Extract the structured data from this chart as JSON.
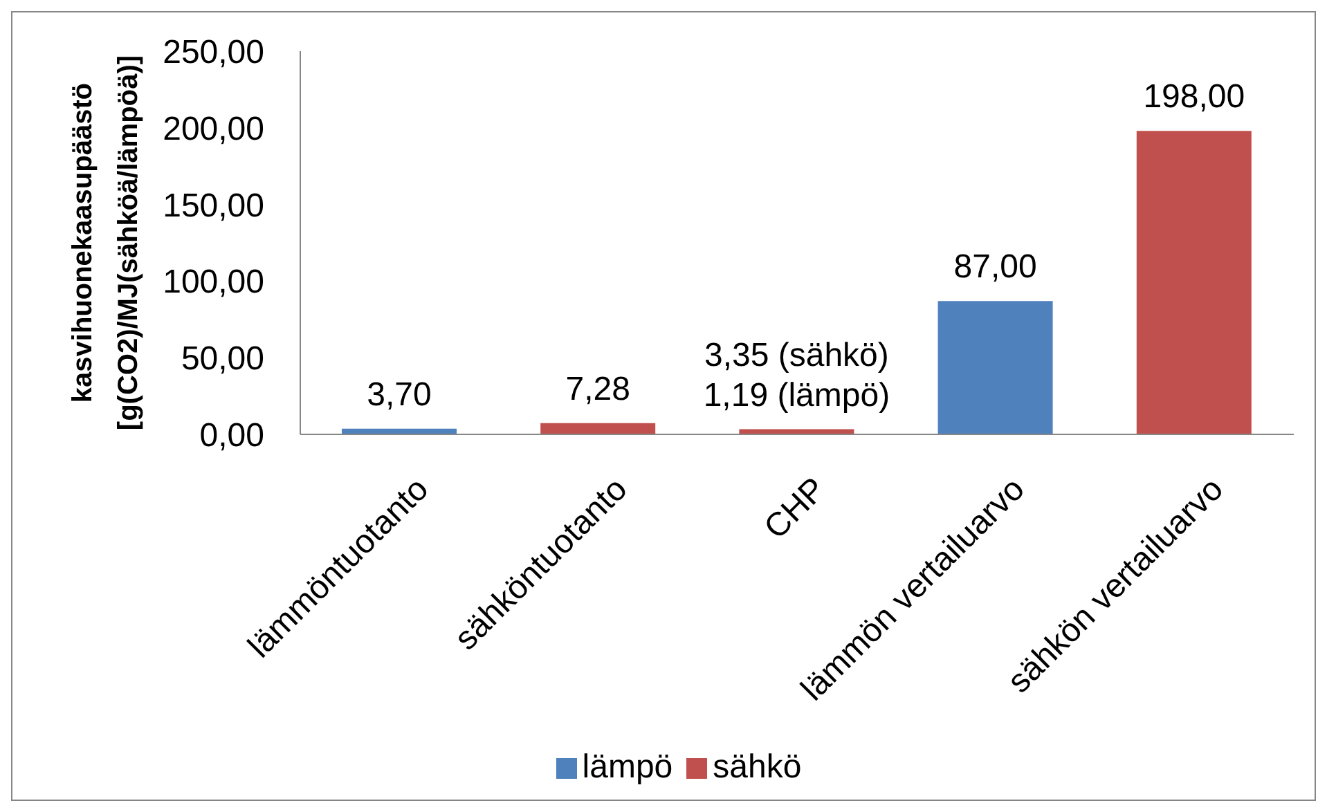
{
  "chart_data": {
    "type": "bar",
    "ylabel": "kasvihuonekaasupäästö\n[g(CO2)/MJ(sähköä/lämpöä)]",
    "categories": [
      "lämmöntuotanto",
      "sähköntuotanto",
      "CHP",
      "lämmön vertailuarvo",
      "sähkön vertailuarvo"
    ],
    "series": [
      {
        "name": "lämpö",
        "color": "#4f81bd",
        "values": [
          3.7,
          null,
          null,
          87,
          null
        ],
        "value_labels": [
          "3,70",
          null,
          null,
          "87,00",
          null
        ]
      },
      {
        "name": "sähkö",
        "color": "#c0504d",
        "values": [
          null,
          7.28,
          3.35,
          null,
          198
        ],
        "value_labels": [
          null,
          "7,28",
          "3,35 (sähkö)\n1,19 (lämpö)",
          null,
          "198,00"
        ]
      }
    ],
    "ylim": [
      0,
      250
    ],
    "yticks": [
      {
        "value": 0,
        "label": "0,00"
      },
      {
        "value": 50,
        "label": "50,00"
      },
      {
        "value": 100,
        "label": "100,00"
      },
      {
        "value": 150,
        "label": "150,00"
      },
      {
        "value": 200,
        "label": "200,00"
      },
      {
        "value": 250,
        "label": "250,00"
      }
    ],
    "legend": "bottom"
  }
}
